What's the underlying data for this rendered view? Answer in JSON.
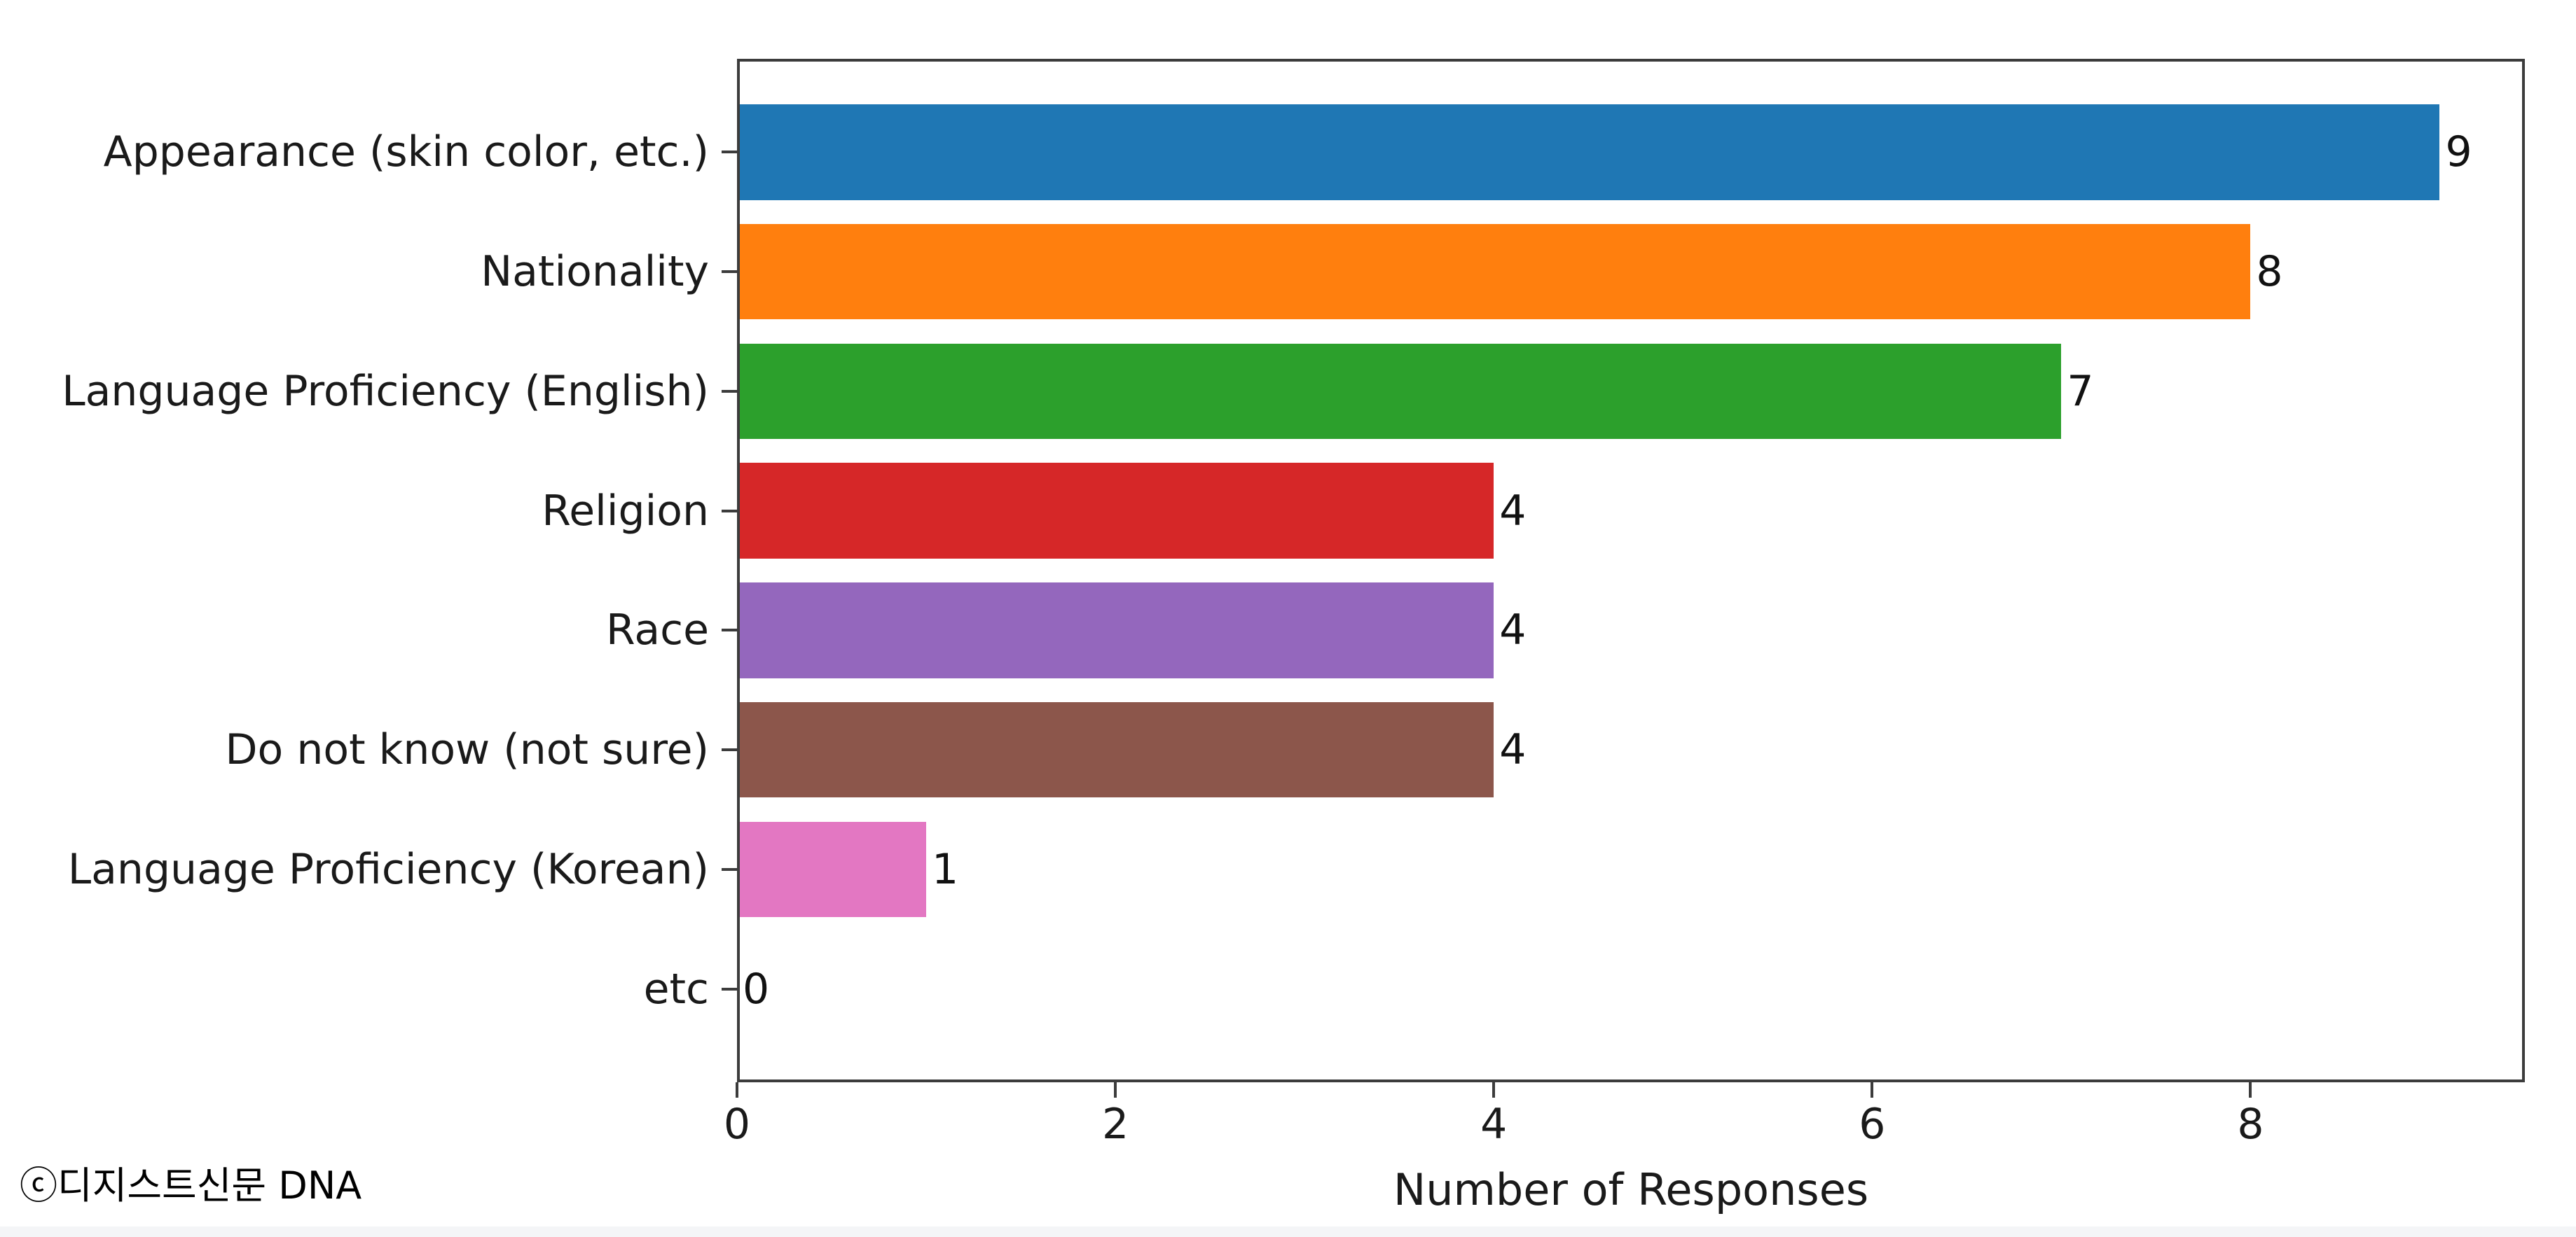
{
  "chart_data": {
    "type": "bar",
    "orientation": "horizontal",
    "title": "",
    "xlabel": "Number of Responses",
    "ylabel": "",
    "categories": [
      "Appearance (skin color, etc.)",
      "Nationality",
      "Language Proficiency (English)",
      "Religion",
      "Race",
      "Do not know (not sure)",
      "Language Proficiency (Korean)",
      "etc"
    ],
    "values": [
      9,
      8,
      7,
      4,
      4,
      4,
      1,
      0
    ],
    "value_labels": [
      "9",
      "8",
      "7",
      "4",
      "4",
      "4",
      "1",
      "0"
    ],
    "bar_colors": [
      "#1f77b4",
      "#ff7f0e",
      "#2ca02c",
      "#d62728",
      "#9467bd",
      "#8c564b",
      "#e377c2",
      "#1f77b4"
    ],
    "x_ticks": [
      0,
      2,
      4,
      6,
      8
    ],
    "x_tick_labels": [
      "0",
      "2",
      "4",
      "6",
      "8"
    ],
    "xlim": [
      0,
      9.45
    ],
    "grid": false,
    "legend": null
  },
  "footer": {
    "copyright": "ⓒ디지스트신문 DNA"
  },
  "colors": {
    "spine": "#3c3c3c",
    "text": "#1a1a1a",
    "background": "#ffffff",
    "bottom_strip": "#f4f5f7"
  }
}
